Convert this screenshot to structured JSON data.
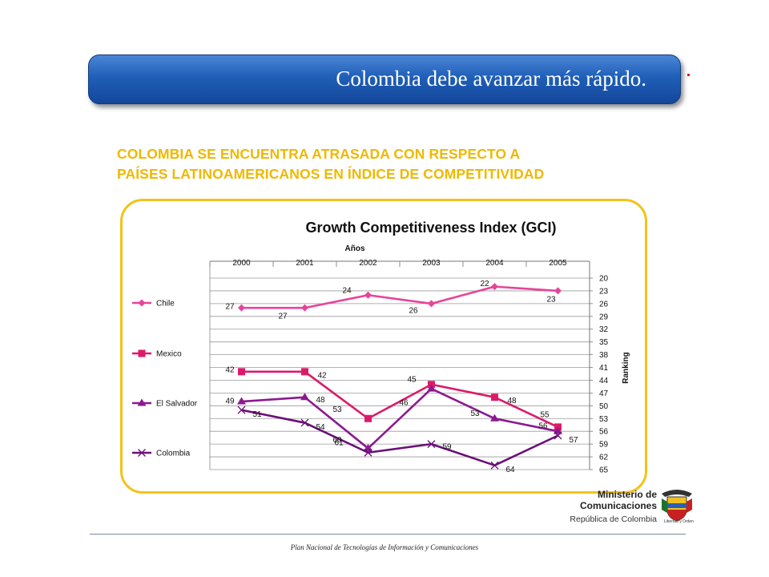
{
  "slide": {
    "banner_title": "Colombia debe avanzar más rápido.",
    "headline_line1": "COLOMBIA SE ENCUENTRA ATRASADA CON  RESPECTO A",
    "headline_line2": "PAÍSES LATINOAMERICANOS EN ÍNDICE DE COMPETITIVIDAD",
    "footer": "Plan Nacional de Tecnologías de Información y Comunicaciones",
    "logo": {
      "line1": "Ministerio de",
      "line2": "Comunicaciones",
      "line3": "República de Colombia",
      "motto": "Libertad y Orden"
    },
    "colors": {
      "banner": "#1f5fb8",
      "headline": "#f0b800",
      "frame": "#f3c21b"
    }
  },
  "chart_data": {
    "type": "line",
    "title": "Growth Competitiveness Index (GCI)",
    "xlabel": "Años",
    "ylabel": "Ranking",
    "categories": [
      "2000",
      "2001",
      "2002",
      "2003",
      "2004",
      "2005"
    ],
    "y_ticks": [
      20,
      23,
      26,
      29,
      32,
      35,
      38,
      41,
      44,
      47,
      50,
      53,
      56,
      59,
      62,
      65
    ],
    "ylim": [
      65,
      20
    ],
    "y_inverted": true,
    "x_axis_position": "top",
    "y_axis_position": "right",
    "grid": true,
    "legend_position": "left",
    "series": [
      {
        "name": "Chile",
        "values": [
          27,
          27,
          24,
          26,
          22,
          23
        ],
        "color": "#e8439a",
        "marker": "diamond"
      },
      {
        "name": "Mexico",
        "values": [
          42,
          42,
          53,
          45,
          48,
          55
        ],
        "color": "#dc1a6a",
        "marker": "square"
      },
      {
        "name": "El Salvador",
        "values": [
          49,
          48,
          60,
          46,
          53,
          56
        ],
        "color": "#8b1a8f",
        "marker": "triangle"
      },
      {
        "name": "Colombia",
        "values": [
          51,
          54,
          61,
          59,
          64,
          57
        ],
        "color": "#6a1078",
        "marker": "x"
      }
    ]
  }
}
